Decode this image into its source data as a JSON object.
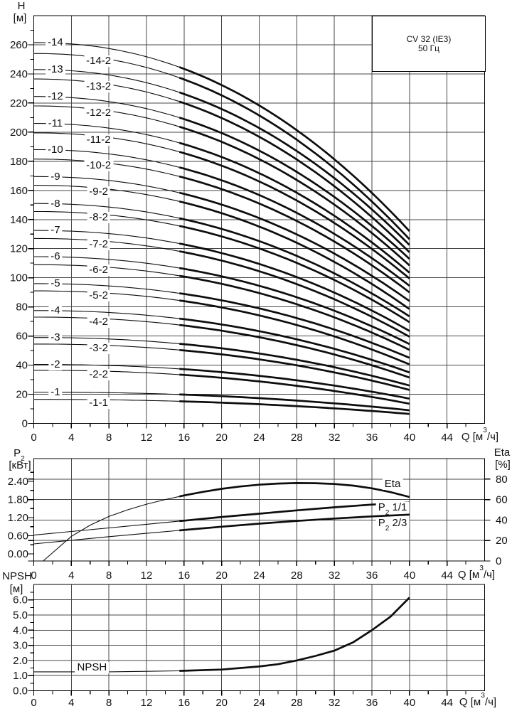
{
  "title_box": {
    "line1": "CV 32 (IE3)",
    "line2": "50 Гц"
  },
  "axes": {
    "h_title": "H",
    "h_unit": "[м]",
    "p2_title": "P~2~",
    "p2_unit": "[кВт]",
    "eta_title": "Eta",
    "eta_unit": "[%]",
    "npsh_title": "NPSH",
    "npsh_unit": "[м]",
    "q_label": "Q [м^3^/ч]"
  },
  "colors": {
    "grid": "#474747",
    "axis": "#000000",
    "curve": "#0d0d0d",
    "background": "#ffffff"
  },
  "chart_data": [
    {
      "type": "line",
      "title": "CV 32 (IE3)",
      "subtitle": "50 Гц",
      "xlabel": "Q [м³/ч]",
      "ylabel": "H [м]",
      "xlim": [
        0,
        48
      ],
      "ylim": [
        0,
        280
      ],
      "grid": true,
      "xticks": {
        "values": [
          0,
          4,
          8,
          12,
          16,
          20,
          24,
          28,
          32,
          36,
          40,
          44
        ],
        "labels": [
          "0",
          "4",
          "8",
          "12",
          "16",
          "20",
          "24",
          "28",
          "32",
          "36",
          "40",
          "44"
        ]
      },
      "xminor": [
        2,
        6,
        10,
        14,
        18,
        22,
        26,
        30,
        34,
        38,
        42,
        46
      ],
      "yticks": {
        "values": [
          0,
          20,
          40,
          60,
          80,
          100,
          120,
          140,
          160,
          180,
          200,
          220,
          240,
          260
        ],
        "labels": [
          "0",
          "20",
          "40",
          "60",
          "80",
          "100",
          "120",
          "140",
          "160",
          "180",
          "200",
          "220",
          "240",
          "260"
        ]
      },
      "yminor": [
        10,
        30,
        50,
        70,
        90,
        110,
        130,
        150,
        170,
        190,
        210,
        230,
        250,
        270
      ],
      "curve_model": {
        "exponent": 2.15,
        "q_end": 40,
        "thick_from": 15.5
      },
      "series": [
        {
          "name": "-14",
          "variant": "main",
          "h0": 261.5,
          "h40": 132.0,
          "label_q": 2.3
        },
        {
          "name": "-14-2",
          "variant": "trim",
          "h0": 254.0,
          "h40": 126.5,
          "label_q": 6.9
        },
        {
          "name": "-13",
          "variant": "main",
          "h0": 243.0,
          "h40": 122.5,
          "label_q": 2.3
        },
        {
          "name": "-13-2",
          "variant": "trim",
          "h0": 236.5,
          "h40": 117.5,
          "label_q": 6.9
        },
        {
          "name": "-12",
          "variant": "main",
          "h0": 224.5,
          "h40": 113.0,
          "label_q": 2.3
        },
        {
          "name": "-12-2",
          "variant": "trim",
          "h0": 218.0,
          "h40": 108.5,
          "label_q": 6.9
        },
        {
          "name": "-11",
          "variant": "main",
          "h0": 206.0,
          "h40": 103.5,
          "label_q": 2.3
        },
        {
          "name": "-11-2",
          "variant": "trim",
          "h0": 199.5,
          "h40": 99.5,
          "label_q": 6.9
        },
        {
          "name": "-10",
          "variant": "main",
          "h0": 188.0,
          "h40": 94.5,
          "label_q": 2.3
        },
        {
          "name": "-10-2",
          "variant": "trim",
          "h0": 181.5,
          "h40": 90.0,
          "label_q": 6.9
        },
        {
          "name": "-9",
          "variant": "main",
          "h0": 169.5,
          "h40": 84.0,
          "label_q": 2.3
        },
        {
          "name": "-9-2",
          "variant": "trim",
          "h0": 163.5,
          "h40": 78.5,
          "label_q": 6.9
        },
        {
          "name": "-8",
          "variant": "main",
          "h0": 151.0,
          "h40": 73.5,
          "label_q": 2.3
        },
        {
          "name": "-8-2",
          "variant": "trim",
          "h0": 145.5,
          "h40": 69.5,
          "label_q": 6.9
        },
        {
          "name": "-7",
          "variant": "main",
          "h0": 132.5,
          "h40": 63.5,
          "label_q": 2.3
        },
        {
          "name": "-7-2",
          "variant": "trim",
          "h0": 127.0,
          "h40": 59.5,
          "label_q": 6.9
        },
        {
          "name": "-6",
          "variant": "main",
          "h0": 114.5,
          "h40": 54.5,
          "label_q": 2.3
        },
        {
          "name": "-6-2",
          "variant": "trim",
          "h0": 109.0,
          "h40": 50.5,
          "label_q": 6.9
        },
        {
          "name": "-5",
          "variant": "main",
          "h0": 96.0,
          "h40": 45.0,
          "label_q": 2.3
        },
        {
          "name": "-5-2",
          "variant": "trim",
          "h0": 91.0,
          "h40": 40.5,
          "label_q": 6.9
        },
        {
          "name": "-4",
          "variant": "main",
          "h0": 77.5,
          "h40": 35.0,
          "label_q": 2.3
        },
        {
          "name": "-4-2",
          "variant": "trim",
          "h0": 73.0,
          "h40": 31.5,
          "label_q": 6.9
        },
        {
          "name": "-3",
          "variant": "main",
          "h0": 59.0,
          "h40": 26.0,
          "label_q": 2.3
        },
        {
          "name": "-3-2",
          "variant": "trim",
          "h0": 54.5,
          "h40": 23.0,
          "label_q": 6.9
        },
        {
          "name": "-2",
          "variant": "main",
          "h0": 40.5,
          "h40": 17.0,
          "label_q": 2.3
        },
        {
          "name": "-2-2",
          "variant": "trim",
          "h0": 36.5,
          "h40": 13.5,
          "label_q": 6.9
        },
        {
          "name": "-1",
          "variant": "main",
          "h0": 21.5,
          "h40": 9.0,
          "label_q": 2.3
        },
        {
          "name": "-1-1",
          "variant": "trim",
          "h0": 16.5,
          "h40": 6.5,
          "label_q": 6.9
        }
      ]
    },
    {
      "type": "line",
      "xlabel": "Q [м³/ч]",
      "ylabel_left": "P₂ [кВт]",
      "ylabel_right": "Eta [%]",
      "xlim": [
        0,
        48
      ],
      "ylim_right": [
        0,
        100
      ],
      "grid": true,
      "thick_from": 15.5,
      "xticks": {
        "values": [
          0,
          4,
          8,
          12,
          16,
          20,
          24,
          28,
          32,
          36,
          40,
          44
        ],
        "labels": [
          "0",
          "4",
          "8",
          "12",
          "16",
          "20",
          "24",
          "28",
          "32",
          "36",
          "40",
          "44"
        ]
      },
      "xminor": [
        2,
        6,
        10,
        14,
        18,
        22,
        26,
        30,
        34,
        38,
        42,
        46
      ],
      "yticks_left": {
        "values": [
          0,
          0.6,
          1.2,
          1.8,
          2.4
        ],
        "labels": [
          "0.00",
          "0.60",
          "1.20",
          "1.80",
          "2.40"
        ]
      },
      "yminor_left": [
        0.3,
        0.9,
        1.5,
        2.1,
        2.7
      ],
      "yticks_right": {
        "values": [
          0,
          20,
          40,
          60,
          80
        ],
        "labels": [
          "0",
          "20",
          "40",
          "60",
          "80"
        ]
      },
      "series": [
        {
          "name": "Eta",
          "axis": "right",
          "points": [
            [
              1,
              0
            ],
            [
              2,
              8
            ],
            [
              4,
              24
            ],
            [
              6,
              35
            ],
            [
              8,
              43.5
            ],
            [
              10,
              50
            ],
            [
              12,
              55.5
            ],
            [
              14,
              60
            ],
            [
              16,
              64
            ],
            [
              18,
              67.5
            ],
            [
              20,
              70.5
            ],
            [
              22,
              72.8
            ],
            [
              24,
              74.5
            ],
            [
              26,
              75.6
            ],
            [
              28,
              76.1
            ],
            [
              30,
              76
            ],
            [
              32,
              75.2
            ],
            [
              34,
              73.6
            ],
            [
              36,
              71
            ],
            [
              38,
              67.2
            ],
            [
              40,
              62.5
            ]
          ]
        },
        {
          "name": "P₂ 1/1",
          "axis": "left",
          "points": [
            [
              0,
              0.62
            ],
            [
              4,
              0.74
            ],
            [
              8,
              0.86
            ],
            [
              12,
              0.98
            ],
            [
              16,
              1.1
            ],
            [
              20,
              1.22
            ],
            [
              24,
              1.33
            ],
            [
              28,
              1.44
            ],
            [
              32,
              1.54
            ],
            [
              36,
              1.63
            ],
            [
              40,
              1.7
            ]
          ]
        },
        {
          "name": "P₂ 2/3",
          "axis": "left",
          "points": [
            [
              0,
              0.33
            ],
            [
              4,
              0.45
            ],
            [
              8,
              0.57
            ],
            [
              12,
              0.68
            ],
            [
              16,
              0.79
            ],
            [
              20,
              0.9
            ],
            [
              24,
              1.0
            ],
            [
              28,
              1.09
            ],
            [
              32,
              1.17
            ],
            [
              36,
              1.24
            ],
            [
              40,
              1.3
            ]
          ]
        }
      ],
      "labels": [
        {
          "text": "Eta",
          "q": 38.2,
          "v": 75.0,
          "axis": "right"
        },
        {
          "text": "P~2~ 1/1",
          "q": 38.2,
          "v": 1.53,
          "axis": "left"
        },
        {
          "text": "P~2~ 2/3",
          "q": 38.2,
          "v": 1.01,
          "axis": "left"
        }
      ]
    },
    {
      "type": "line",
      "xlabel": "Q [м³/ч]",
      "ylabel": "NPSH [м]",
      "xlim": [
        0,
        48
      ],
      "ylim": [
        0,
        7.02
      ],
      "grid": true,
      "thick_from": 15.5,
      "xticks": {
        "values": [
          0,
          4,
          8,
          12,
          16,
          20,
          24,
          28,
          32,
          36,
          40,
          44
        ],
        "labels": [
          "0",
          "4",
          "8",
          "12",
          "16",
          "20",
          "24",
          "28",
          "32",
          "36",
          "40",
          "44"
        ]
      },
      "xminor": [
        2,
        6,
        10,
        14,
        18,
        22,
        26,
        30,
        34,
        38,
        42,
        46
      ],
      "yticks": {
        "values": [
          0,
          1,
          2,
          3,
          4,
          5,
          6
        ],
        "labels": [
          "0.0",
          "1.0",
          "2.0",
          "3.0",
          "4.0",
          "5.0",
          "6.0"
        ]
      },
      "yminor": [
        0.5,
        1.5,
        2.5,
        3.5,
        4.5,
        5.5,
        6.5
      ],
      "series": [
        {
          "name": "NPSH",
          "points": [
            [
              0,
              1.25
            ],
            [
              4,
              1.25
            ],
            [
              8,
              1.25
            ],
            [
              12,
              1.28
            ],
            [
              16,
              1.32
            ],
            [
              20,
              1.4
            ],
            [
              24,
              1.6
            ],
            [
              26,
              1.75
            ],
            [
              28,
              2.0
            ],
            [
              30,
              2.3
            ],
            [
              32,
              2.65
            ],
            [
              34,
              3.2
            ],
            [
              36,
              4.0
            ],
            [
              38,
              4.9
            ],
            [
              40,
              6.15
            ]
          ]
        }
      ],
      "labels": [
        {
          "text": "NPSH",
          "q": 6.2,
          "v": 1.53
        }
      ]
    }
  ]
}
